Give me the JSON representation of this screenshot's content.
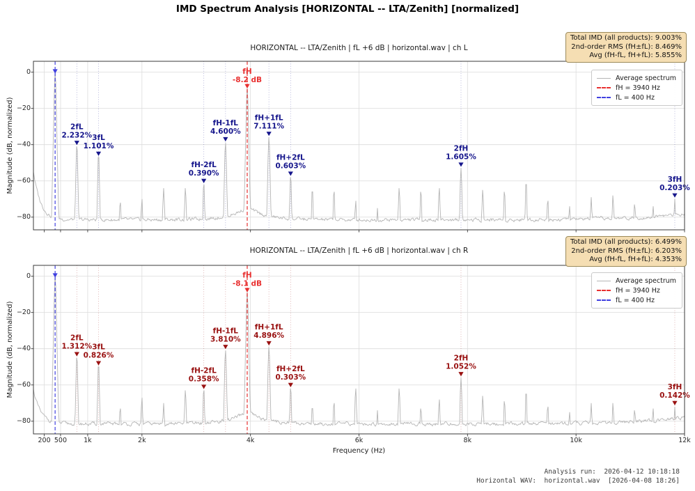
{
  "title": "IMD Spectrum Analysis  [HORIZONTAL -- LTA/Zenith]  [normalized]",
  "colors": {
    "spectrum": "#b5b5b5",
    "fh_red": "#e83030",
    "fl_blue": "#4040e0",
    "accent_left": "#16168c",
    "accent_right": "#991111",
    "grid": "#dcdcdc",
    "spine": "#3a3a3a",
    "stats_bg": "#f5deb3"
  },
  "axes": {
    "xlabel": "Frequency (Hz)",
    "ylabel": "Magnitude (dB, normalized)",
    "xlim": [
      0,
      12000
    ],
    "ylim": [
      6,
      -87
    ],
    "grid": true,
    "xticks": [
      {
        "f": 200,
        "label": "200"
      },
      {
        "f": 500,
        "label": "500"
      },
      {
        "f": 1000,
        "label": "1k"
      },
      {
        "f": 2000,
        "label": "2k"
      },
      {
        "f": 4000,
        "label": "4k"
      },
      {
        "f": 6000,
        "label": "6k"
      },
      {
        "f": 8000,
        "label": "8k"
      },
      {
        "f": 10000,
        "label": "10k"
      },
      {
        "f": 12000,
        "label": "12k"
      }
    ],
    "yticks": [
      {
        "db": 0,
        "label": "0"
      },
      {
        "db": -20,
        "label": "−20"
      },
      {
        "db": -40,
        "label": "−40"
      },
      {
        "db": -60,
        "label": "−60"
      },
      {
        "db": -80,
        "label": "−80"
      }
    ]
  },
  "legend": {
    "position": "upper right",
    "items": [
      {
        "label": "Average spectrum",
        "color": "#b5b5b5",
        "dash": "solid"
      },
      {
        "label": "fH = 3940 Hz",
        "color": "#e83030",
        "dash": "dashed"
      },
      {
        "label": "fL = 400 Hz",
        "color": "#4040e0",
        "dash": "dashed"
      }
    ]
  },
  "chart_data": [
    {
      "type": "line",
      "channel": "L",
      "title": "HORIZONTAL -- LTA/Zenith  |  fL +6 dB  |  horizontal.wav  |  ch L",
      "stats": [
        "Total IMD (all products): 9.003%",
        "2nd-order RMS (fH±fL): 8.469%",
        "Avg (fH-fL, fH+fL): 5.855%"
      ],
      "accent": "#16168c",
      "fL": {
        "label": "fL",
        "freq": 400,
        "peak_db": 0
      },
      "fH": {
        "label": "fH",
        "freq": 3940,
        "peak_db": -8.2,
        "value": "-8.2 dB"
      },
      "annotations": [
        {
          "label": "2fL",
          "value": "2.232%",
          "freq": 800,
          "peak_db": -41
        },
        {
          "label": "3fL",
          "value": "1.101%",
          "freq": 1200,
          "peak_db": -47
        },
        {
          "label": "fH-2fL",
          "value": "0.390%",
          "freq": 3140,
          "peak_db": -62
        },
        {
          "label": "fH-1fL",
          "value": "4.600%",
          "freq": 3540,
          "peak_db": -39
        },
        {
          "label": "fH+1fL",
          "value": "7.111%",
          "freq": 4340,
          "peak_db": -36
        },
        {
          "label": "fH+2fL",
          "value": "0.603%",
          "freq": 4740,
          "peak_db": -58
        },
        {
          "label": "2fH",
          "value": "1.605%",
          "freq": 7880,
          "peak_db": -53
        },
        {
          "label": "3fH",
          "value": "0.203%",
          "freq": 11820,
          "peak_db": -70
        }
      ],
      "extra_peaks": [
        [
          1600,
          -72
        ],
        [
          2000,
          -70
        ],
        [
          2400,
          -64
        ],
        [
          2800,
          -64
        ],
        [
          5140,
          -66
        ],
        [
          5540,
          -66
        ],
        [
          5940,
          -71
        ],
        [
          6340,
          -75
        ],
        [
          6740,
          -64
        ],
        [
          7140,
          -66
        ],
        [
          7480,
          -64
        ],
        [
          8280,
          -65
        ],
        [
          8680,
          -66
        ],
        [
          9080,
          -62
        ],
        [
          9480,
          -71
        ],
        [
          9880,
          -74
        ],
        [
          10280,
          -69
        ],
        [
          10680,
          -68
        ],
        [
          11080,
          -73
        ],
        [
          11420,
          -74
        ]
      ],
      "noise_floor_db": -81.5,
      "left_rise_db": 27,
      "fh_skirt_db": 7,
      "seed": 3
    },
    {
      "type": "line",
      "channel": "R",
      "title": "HORIZONTAL -- LTA/Zenith  |  fL +6 dB  |  horizontal.wav  |  ch R",
      "stats": [
        "Total IMD (all products): 6.499%",
        "2nd-order RMS (fH±fL): 6.203%",
        "Avg (fH-fL, fH+fL): 4.353%"
      ],
      "accent": "#991111",
      "fL": {
        "label": "fL",
        "freq": 400,
        "peak_db": 0
      },
      "fH": {
        "label": "fH",
        "freq": 3940,
        "peak_db": -8.1,
        "value": "-8.1 dB"
      },
      "annotations": [
        {
          "label": "2fL",
          "value": "1.312%",
          "freq": 800,
          "peak_db": -45
        },
        {
          "label": "3fL",
          "value": "0.826%",
          "freq": 1200,
          "peak_db": -50
        },
        {
          "label": "fH-2fL",
          "value": "0.358%",
          "freq": 3140,
          "peak_db": -63
        },
        {
          "label": "fH-1fL",
          "value": "3.810%",
          "freq": 3540,
          "peak_db": -41
        },
        {
          "label": "fH+1fL",
          "value": "4.896%",
          "freq": 4340,
          "peak_db": -39
        },
        {
          "label": "fH+2fL",
          "value": "0.303%",
          "freq": 4740,
          "peak_db": -62
        },
        {
          "label": "2fH",
          "value": "1.052%",
          "freq": 7880,
          "peak_db": -56
        },
        {
          "label": "3fH",
          "value": "0.142%",
          "freq": 11820,
          "peak_db": -72
        }
      ],
      "extra_peaks": [
        [
          1600,
          -73
        ],
        [
          2000,
          -67
        ],
        [
          2400,
          -70
        ],
        [
          2800,
          -63
        ],
        [
          5140,
          -73
        ],
        [
          5540,
          -70
        ],
        [
          5940,
          -62
        ],
        [
          6340,
          -74
        ],
        [
          6740,
          -62
        ],
        [
          7140,
          -73
        ],
        [
          7480,
          -68
        ],
        [
          8280,
          -66
        ],
        [
          8680,
          -69
        ],
        [
          9080,
          -65
        ],
        [
          9480,
          -72
        ],
        [
          9880,
          -75
        ],
        [
          10280,
          -70
        ],
        [
          10680,
          -70
        ],
        [
          11080,
          -74
        ],
        [
          11420,
          -73
        ]
      ],
      "noise_floor_db": -81.5,
      "left_rise_db": 19,
      "fh_skirt_db": 6.5,
      "seed": 11
    }
  ],
  "footer": {
    "line1": "Analysis run:  2026-04-12 10:18:18",
    "line2": "Horizontal WAV:  horizontal.wav  [2026-04-08 18:26]"
  }
}
